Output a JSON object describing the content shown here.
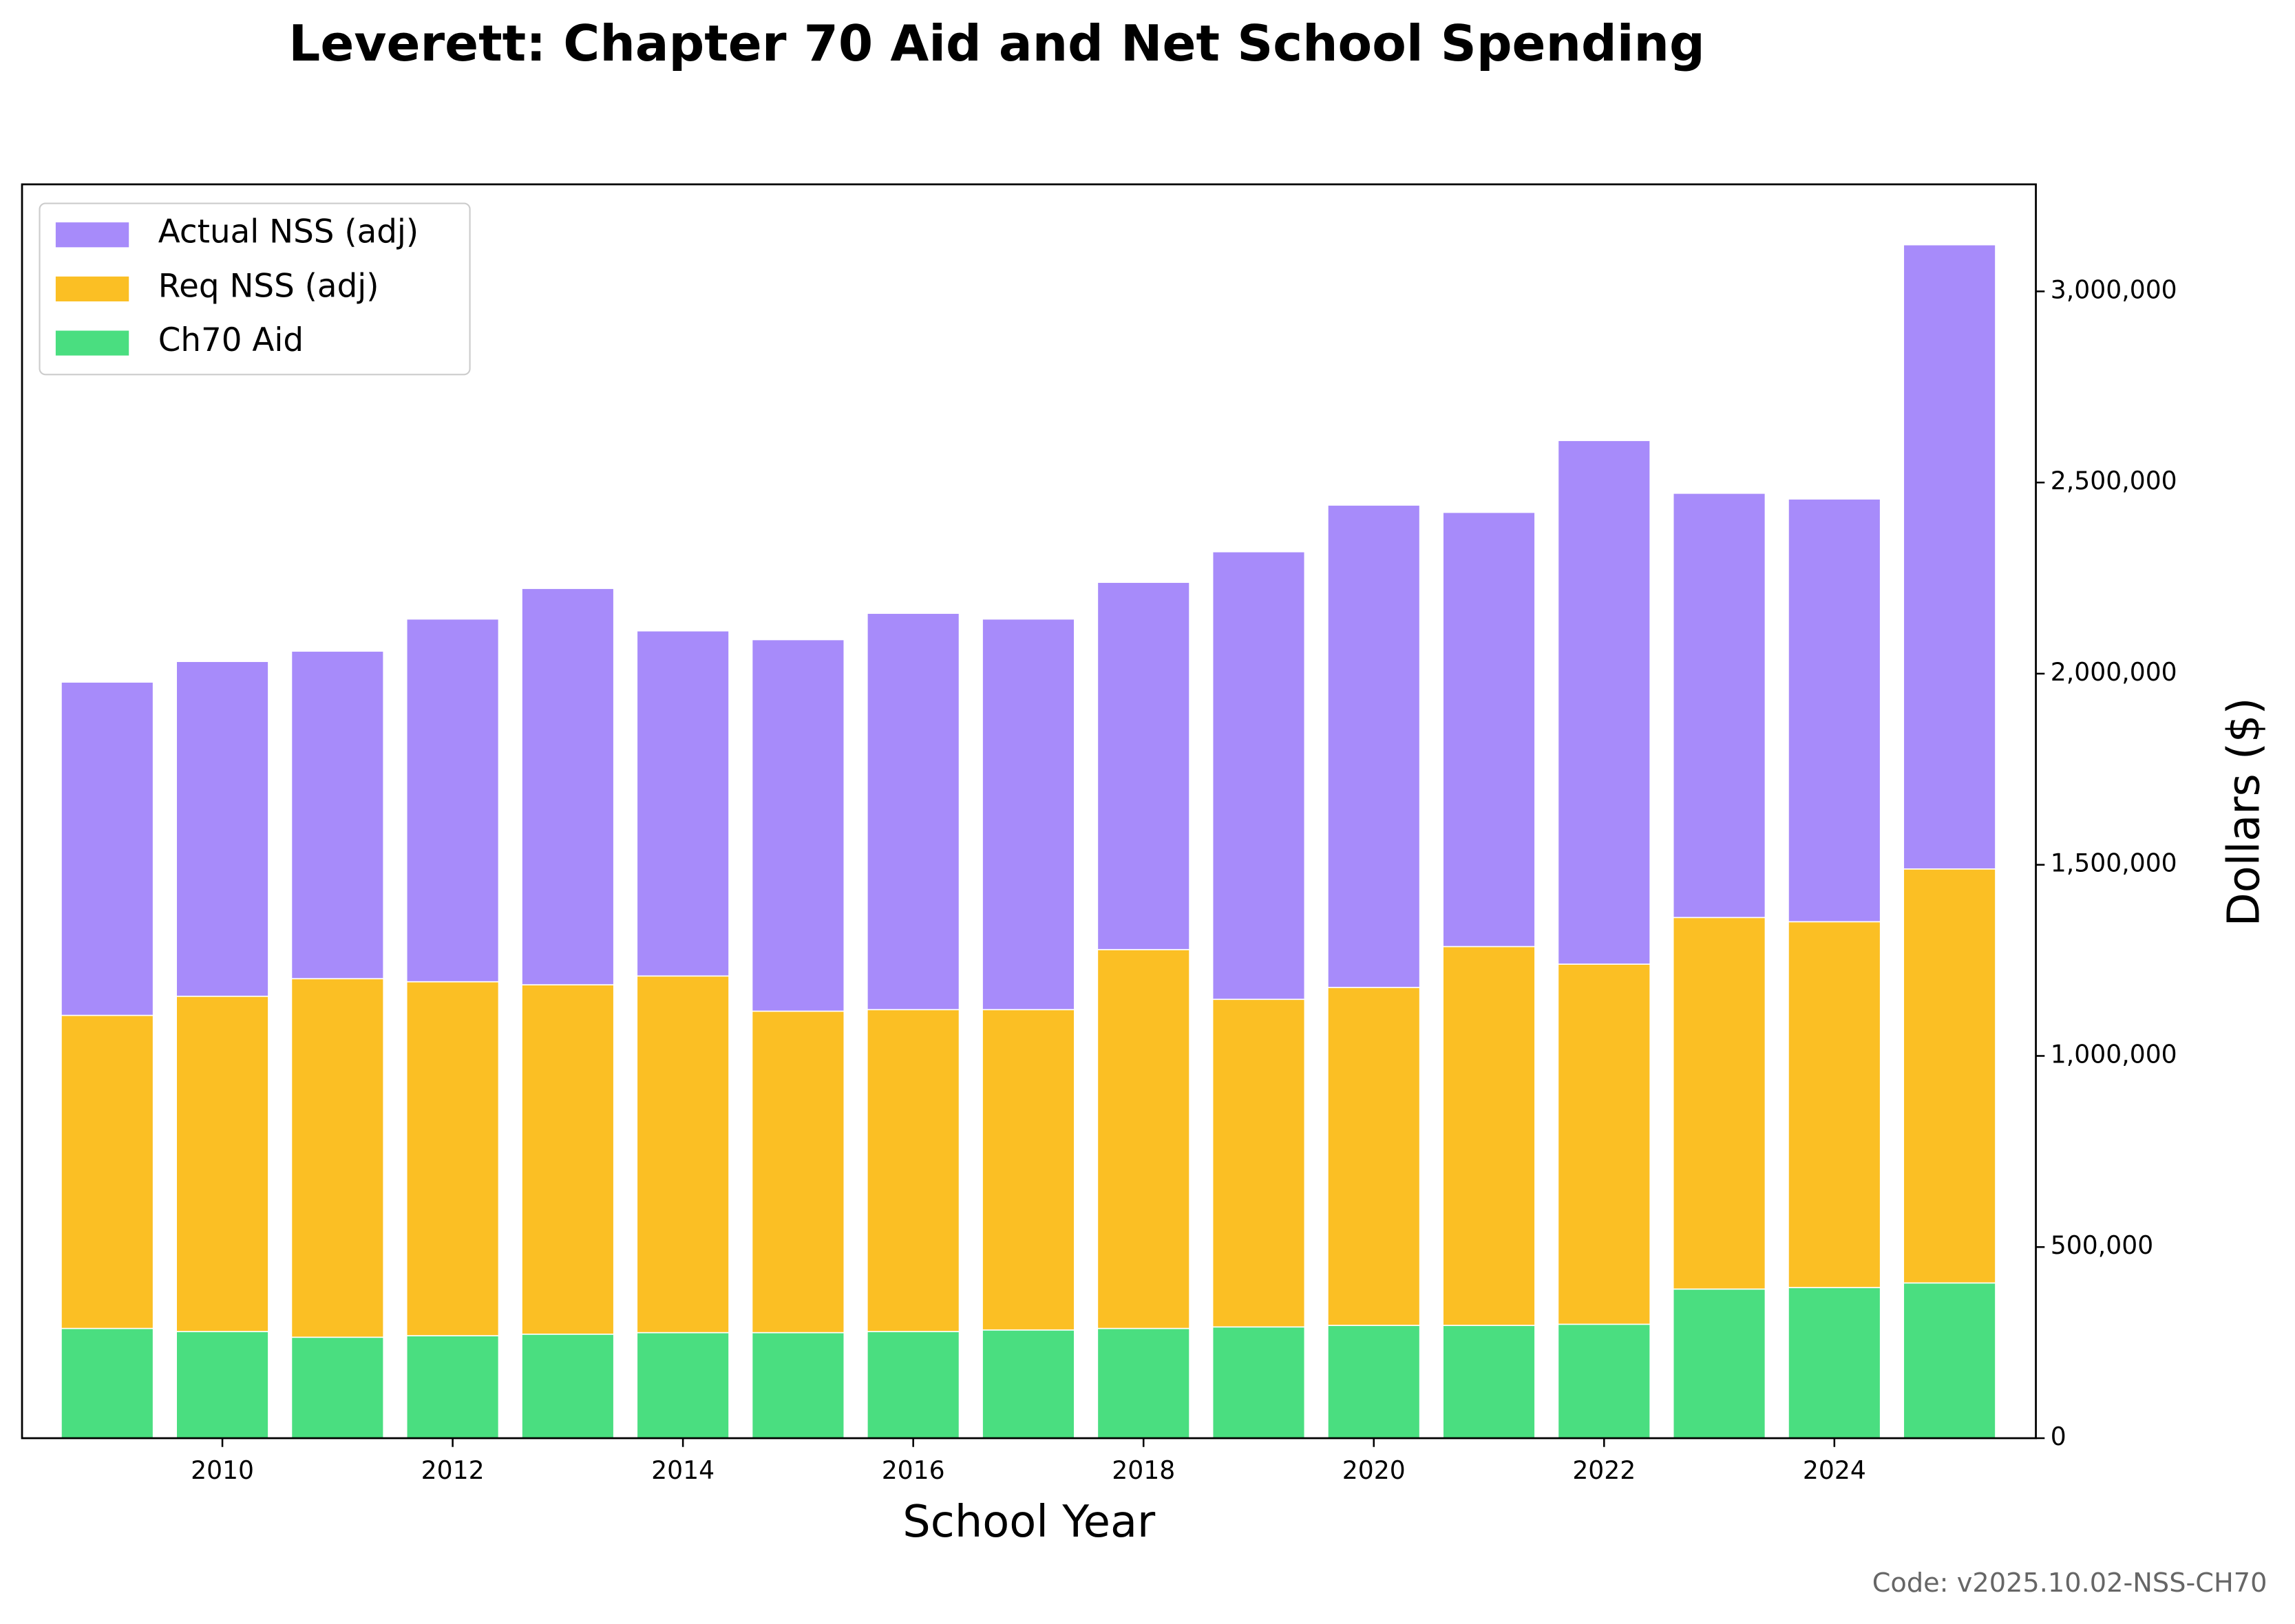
{
  "chart_data": {
    "type": "bar",
    "overlap": true,
    "title": "Leverett: Chapter 70 Aid and Net School Spending",
    "x_label": "School Year",
    "y_label": "Dollars ($)",
    "footnote": "Code: v2025.10.02-NSS-CH70",
    "x": [
      2009,
      2010,
      2011,
      2012,
      2013,
      2014,
      2015,
      2016,
      2017,
      2018,
      2019,
      2020,
      2021,
      2022,
      2023,
      2024,
      2025
    ],
    "series": [
      {
        "name": "Actual NSS (adj)",
        "color": "#a78bfa",
        "values": [
          1978000,
          2032000,
          2059000,
          2143000,
          2223000,
          2112000,
          2089000,
          2158000,
          2143000,
          2239000,
          2319000,
          2441000,
          2422000,
          2610000,
          2472000,
          2457000,
          3122000
        ]
      },
      {
        "name": "Req NSS (adj)",
        "color": "#fbbf24",
        "values": [
          1106000,
          1156000,
          1202000,
          1194000,
          1186000,
          1209000,
          1117000,
          1121000,
          1121000,
          1278000,
          1148000,
          1179000,
          1286000,
          1240000,
          1362000,
          1351000,
          1489000
        ]
      },
      {
        "name": "Ch70 Aid",
        "color": "#4ade80",
        "values": [
          287000,
          279000,
          264000,
          268000,
          272000,
          276000,
          276000,
          279000,
          283000,
          287000,
          291000,
          295000,
          295000,
          298000,
          390000,
          394000,
          406000
        ]
      }
    ],
    "xlim": [
      2008.26,
      2025.75
    ],
    "xticks": [
      2010,
      2012,
      2014,
      2016,
      2018,
      2020,
      2022,
      2024
    ],
    "ylim": [
      0,
      3280000
    ],
    "yticks": [
      0,
      {
        "value": 500000,
        "label": "500,000"
      },
      {
        "value": 1000000,
        "label": "1,000,000"
      },
      {
        "value": 1500000,
        "label": "1,500,000"
      },
      {
        "value": 2000000,
        "label": "2,000,000"
      },
      {
        "value": 2500000,
        "label": "2,500,000"
      },
      {
        "value": 3000000,
        "label": "3,000,000"
      }
    ],
    "y_axis_side": "right",
    "grid": false,
    "legend": "upper left"
  }
}
